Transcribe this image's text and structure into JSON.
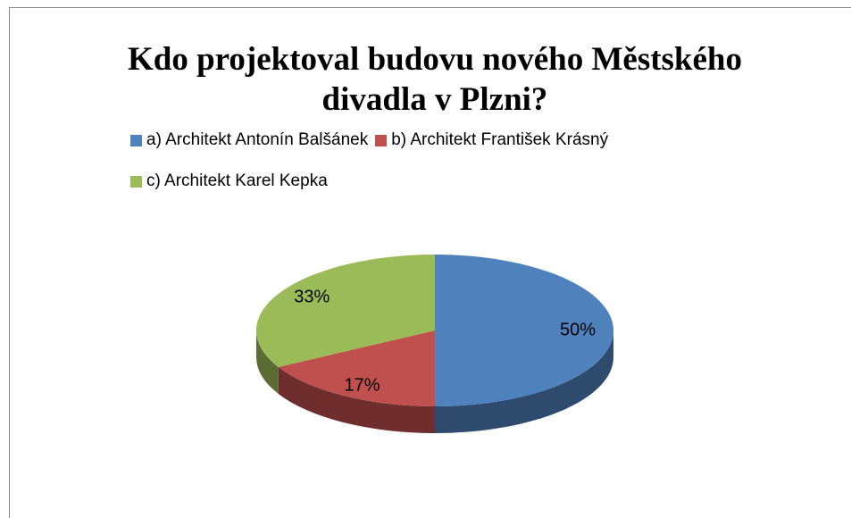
{
  "chart_data": {
    "type": "pie",
    "title": "Kdo projektoval budovu nového Městského divadla v Plzni?",
    "categories": [
      "a) Architekt Antonín Balšánek",
      "b) Architekt František Krásný",
      "c) Architekt Karel Kepka"
    ],
    "values": [
      50,
      17,
      33
    ],
    "value_labels": [
      "50%",
      "17%",
      "33%"
    ],
    "colors": [
      "#4f81bd",
      "#c0504d",
      "#9bbb59"
    ],
    "legend": "top"
  }
}
